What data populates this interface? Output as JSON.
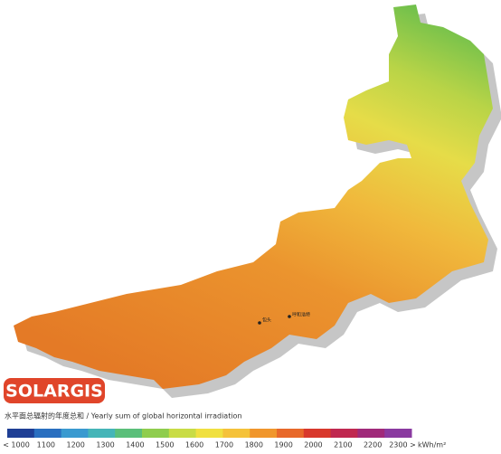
{
  "map": {
    "logo": "SOLARGIS",
    "caption": "水平面总辐射的年度总和 / Yearly sum of global horizontal irradiation",
    "cities": [
      "包头",
      "呼和浩特"
    ],
    "legend": {
      "labels": [
        "< 1000",
        "1100",
        "1200",
        "1300",
        "1400",
        "1500",
        "1600",
        "1700",
        "1800",
        "1900",
        "2000",
        "2100",
        "2200",
        "2300 >"
      ],
      "colors": [
        "#1f3f95",
        "#2a6fc0",
        "#3a9ad0",
        "#45b5b8",
        "#5bbf7a",
        "#8fcd4e",
        "#c9dc45",
        "#f0e040",
        "#f5c23a",
        "#f0962c",
        "#e8682a",
        "#d8382c",
        "#c02850",
        "#a02a7a",
        "#8a3aa0"
      ],
      "unit": "kWh/m²"
    }
  }
}
